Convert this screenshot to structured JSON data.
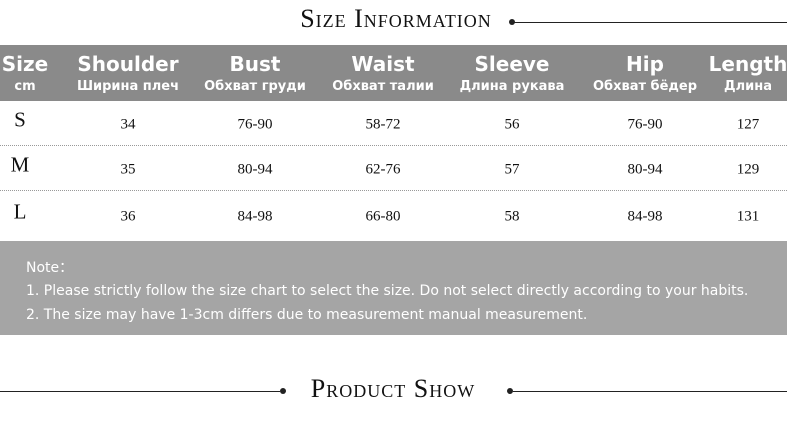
{
  "header": {
    "title": "Size Information"
  },
  "table": {
    "columns": [
      {
        "en": "Size",
        "ru": "cm"
      },
      {
        "en": "Shoulder",
        "ru": "Ширина плеч"
      },
      {
        "en": "Bust",
        "ru": "Обхват груди"
      },
      {
        "en": "Waist",
        "ru": "Обхват талии"
      },
      {
        "en": "Sleeve",
        "ru": "Длина рукава"
      },
      {
        "en": "Hip",
        "ru": "Обхват бёдер"
      },
      {
        "en": "Length",
        "ru": "Длина"
      }
    ],
    "rows": [
      [
        "S",
        "34",
        "76-90",
        "58-72",
        "56",
        "76-90",
        "127"
      ],
      [
        "M",
        "35",
        "80-94",
        "62-76",
        "57",
        "80-94",
        "129"
      ],
      [
        "L",
        "36",
        "84-98",
        "66-80",
        "58",
        "84-98",
        "131"
      ]
    ]
  },
  "notes": {
    "label": "Note：",
    "items": [
      "1. Please strictly follow the size chart to select the size. Do not select directly according to your habits.",
      "2. The size may have 1-3cm differs due to measurement manual measurement."
    ]
  },
  "footer": {
    "title": "Product Show"
  }
}
